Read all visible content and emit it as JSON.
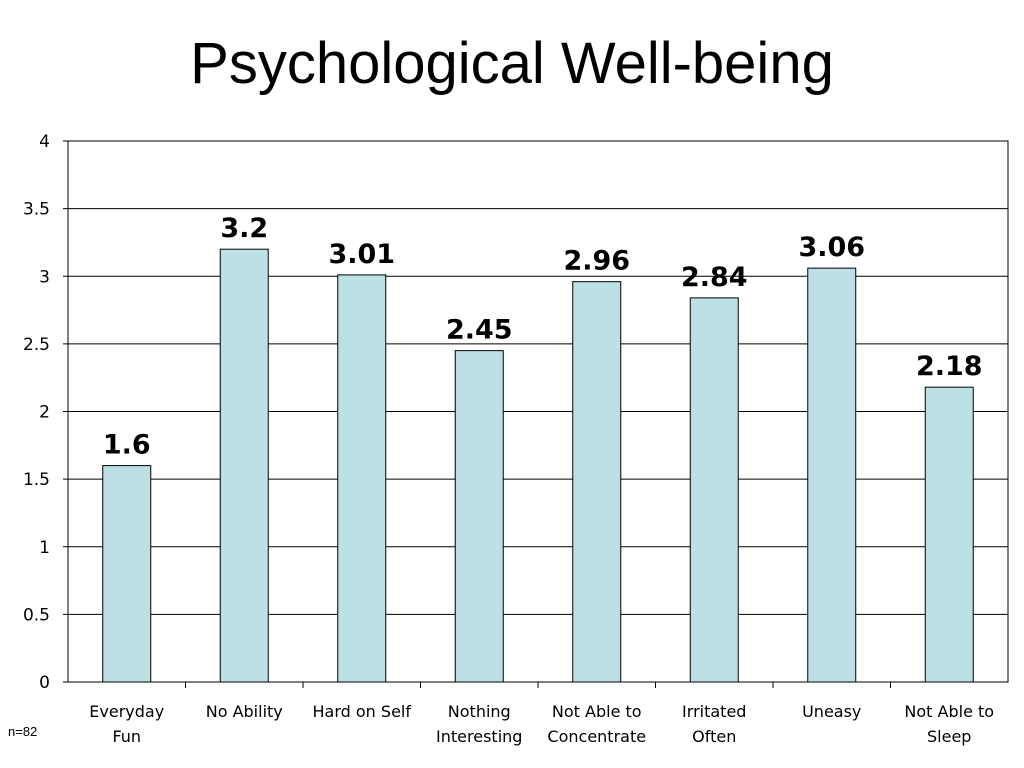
{
  "slide": {
    "title": "Psychological Well-being",
    "note": "n=82"
  },
  "colors": {
    "bar_fill": "#BCE0E4",
    "bar_stroke": "#000000",
    "gridline": "#000000",
    "text": "#000000"
  },
  "chart_data": {
    "type": "bar",
    "categories": [
      [
        "Everyday",
        "Fun"
      ],
      [
        "No Ability"
      ],
      [
        "Hard on Self"
      ],
      [
        "Nothing",
        "Interesting"
      ],
      [
        "Not Able to",
        "Concentrate"
      ],
      [
        "Irritated",
        "Often"
      ],
      [
        "Uneasy"
      ],
      [
        "Not Able to",
        "Sleep"
      ]
    ],
    "values": [
      1.6,
      3.2,
      3.01,
      2.45,
      2.96,
      2.84,
      3.06,
      2.18
    ],
    "value_labels": [
      "1.6",
      "3.2",
      "3.01",
      "2.45",
      "2.96",
      "2.84",
      "3.06",
      "2.18"
    ],
    "ylim": [
      0,
      4
    ],
    "yticks": [
      0,
      0.5,
      1,
      1.5,
      2,
      2.5,
      3,
      3.5,
      4
    ],
    "ytick_labels": [
      "0",
      "0.5",
      "1",
      "1.5",
      "2",
      "2.5",
      "3",
      "3.5",
      "4"
    ],
    "grid": true,
    "legend": "none"
  }
}
